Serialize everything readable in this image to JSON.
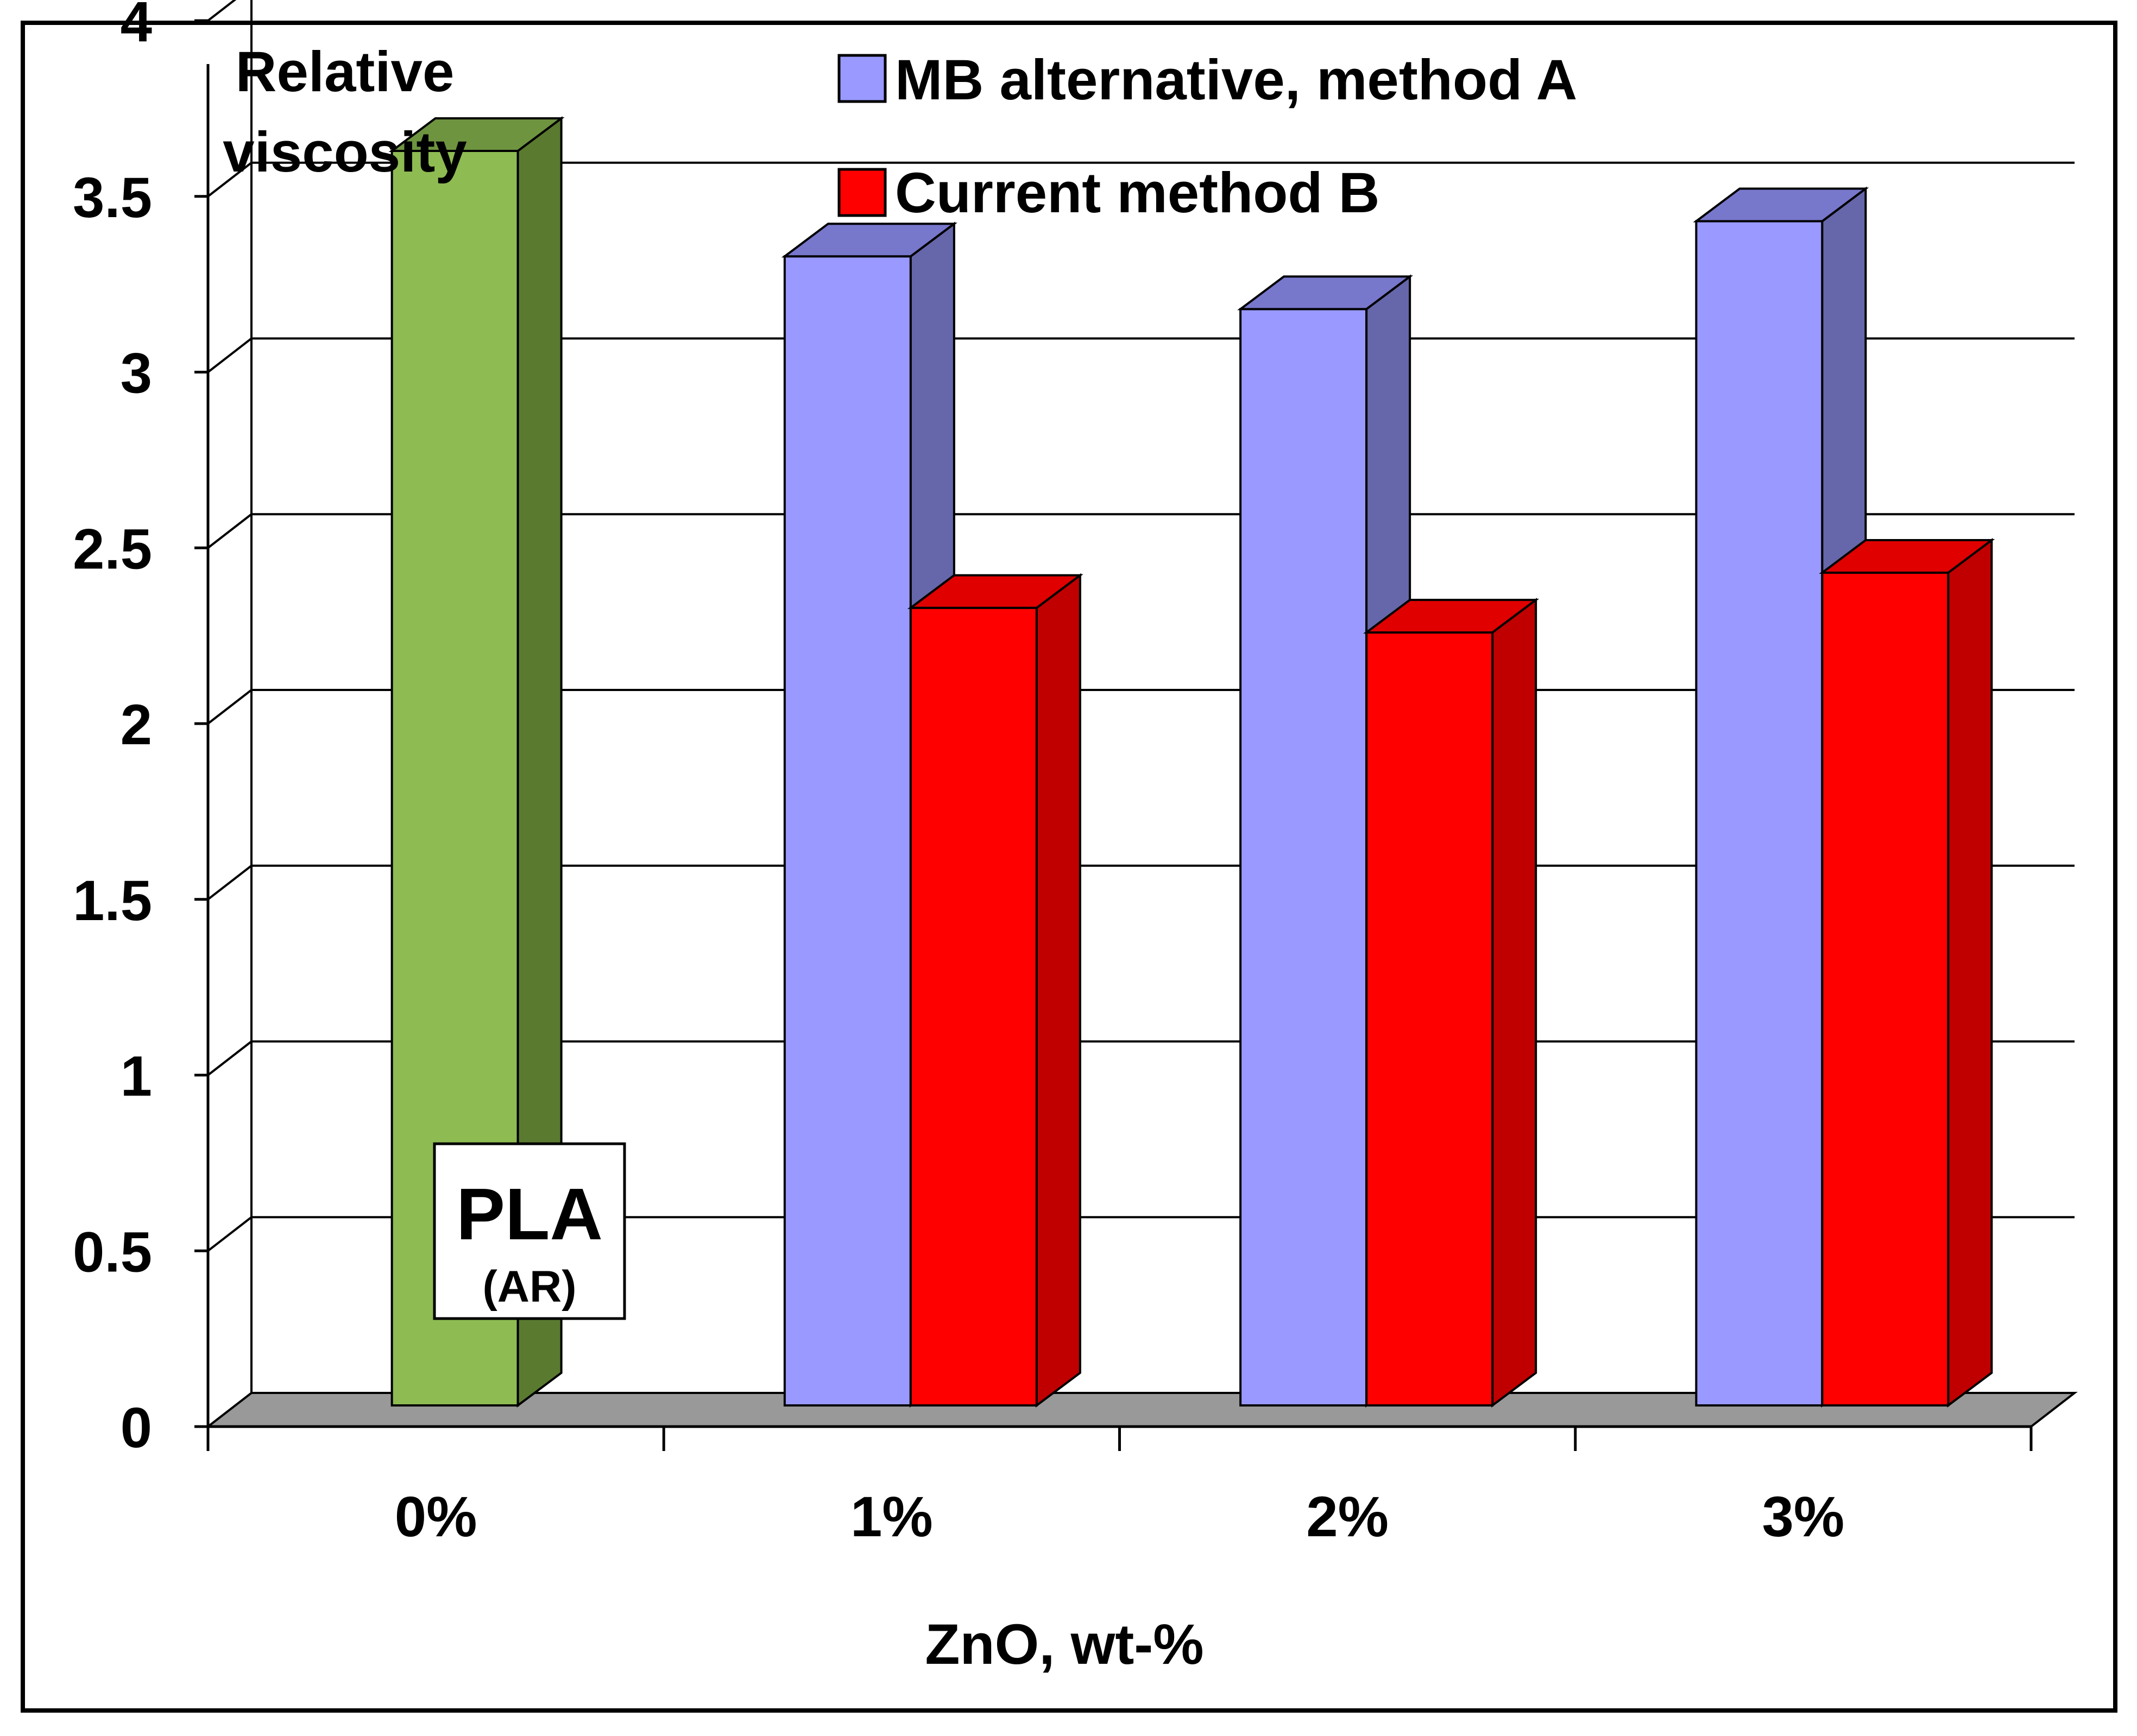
{
  "chart_data": {
    "type": "bar",
    "title": "",
    "ylabel": "Relative viscosity",
    "ylabel_lines": [
      "Relative",
      "viscosity"
    ],
    "xlabel": "ZnO, wt-%",
    "categories": [
      "0%",
      "1%",
      "2%",
      "3%"
    ],
    "ylim": [
      0,
      4
    ],
    "yticks": [
      0,
      0.5,
      1,
      1.5,
      2,
      2.5,
      3,
      3.5,
      4
    ],
    "ytick_labels": [
      "0",
      "0.5",
      "1",
      "1.5",
      "2",
      "2.5",
      "3",
      "3.5",
      "4"
    ],
    "grid": true,
    "legend_position": "top-center",
    "series": [
      {
        "name": "PLA (AR)",
        "values": [
          3.6,
          null,
          null,
          null
        ],
        "color": "#8EBB52",
        "side_color": "#5A7A30",
        "in_legend": false
      },
      {
        "name": "MB alternative, method A",
        "values": [
          null,
          3.3,
          3.15,
          3.4
        ],
        "color": "#9999FF",
        "side_color": "#6666AA",
        "in_legend": true
      },
      {
        "name": "Current method B",
        "values": [
          null,
          2.3,
          2.23,
          2.4
        ],
        "color": "#FF0000",
        "side_color": "#C00000",
        "in_legend": true
      }
    ],
    "annotation": {
      "main": "PLA",
      "sub": "(AR)"
    },
    "floor_color": "#999999"
  }
}
